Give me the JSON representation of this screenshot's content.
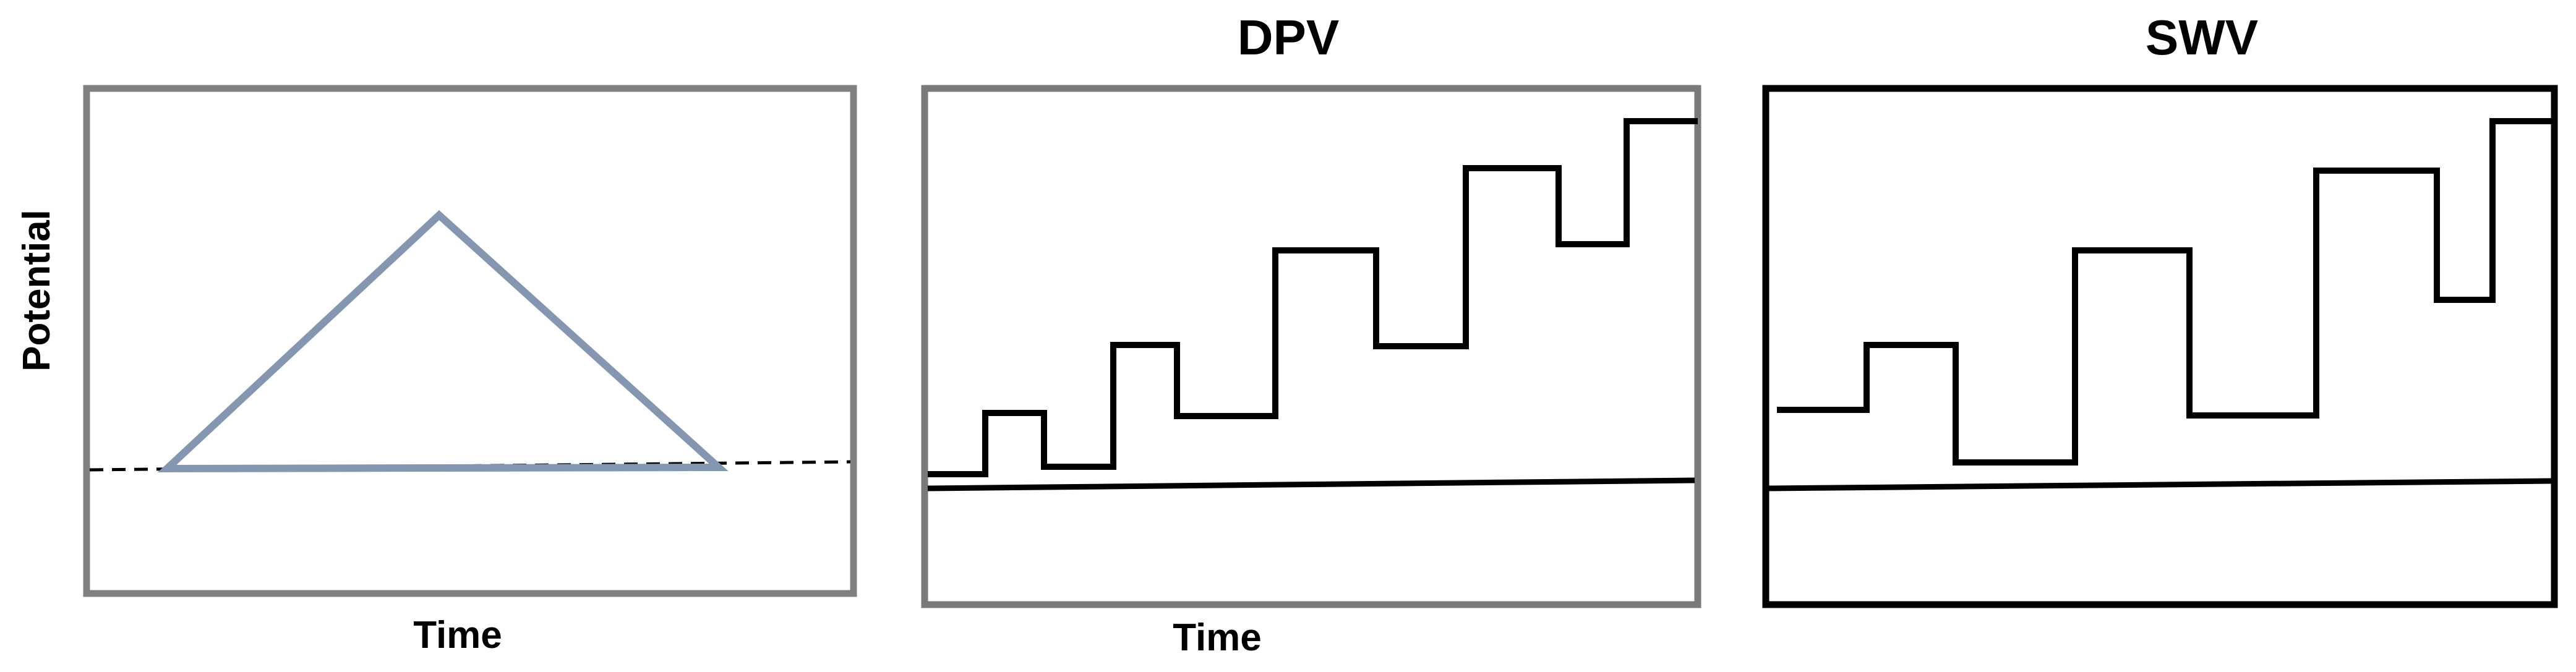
{
  "panels": [
    {
      "id": "cv",
      "title": "",
      "x_label": "Time",
      "y_label": "Potential",
      "frame_color": "#808080",
      "waveform": "triangle",
      "waveform_color": "#8497b0",
      "baseline_style": "dashed"
    },
    {
      "id": "dpv",
      "title": "DPV",
      "x_label": "Time",
      "y_label": "",
      "frame_color": "#7a7a7a",
      "waveform": "staircase with pulses",
      "waveform_color": "#000000",
      "baseline_style": "solid"
    },
    {
      "id": "swv",
      "title": "SWV",
      "x_label": "",
      "y_label": "",
      "frame_color": "#000000",
      "waveform": "staircase with square wave",
      "waveform_color": "#000000",
      "baseline_style": "solid"
    }
  ]
}
